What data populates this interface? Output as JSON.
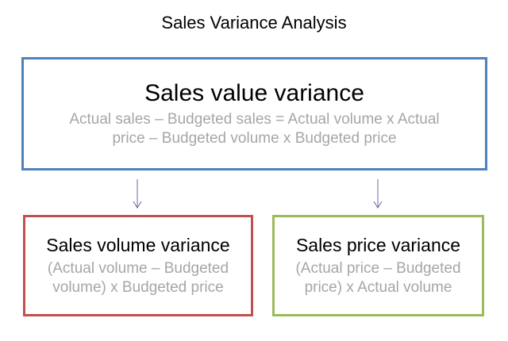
{
  "title": "Sales Variance Analysis",
  "boxes": {
    "value": {
      "heading": "Sales value variance",
      "formula": "Actual sales – Budgeted sales = Actual volume x Actual price – Budgeted volume x Budgeted price",
      "color": "#4f81bd"
    },
    "volume": {
      "heading": "Sales volume variance",
      "formula": "(Actual volume – Budgeted volume) x Budgeted price",
      "color": "#c0504d"
    },
    "price": {
      "heading": "Sales price variance",
      "formula": "(Actual price – Budgeted price) x Actual volume",
      "color": "#9bbb59"
    }
  },
  "arrow_color": "#7464a0"
}
